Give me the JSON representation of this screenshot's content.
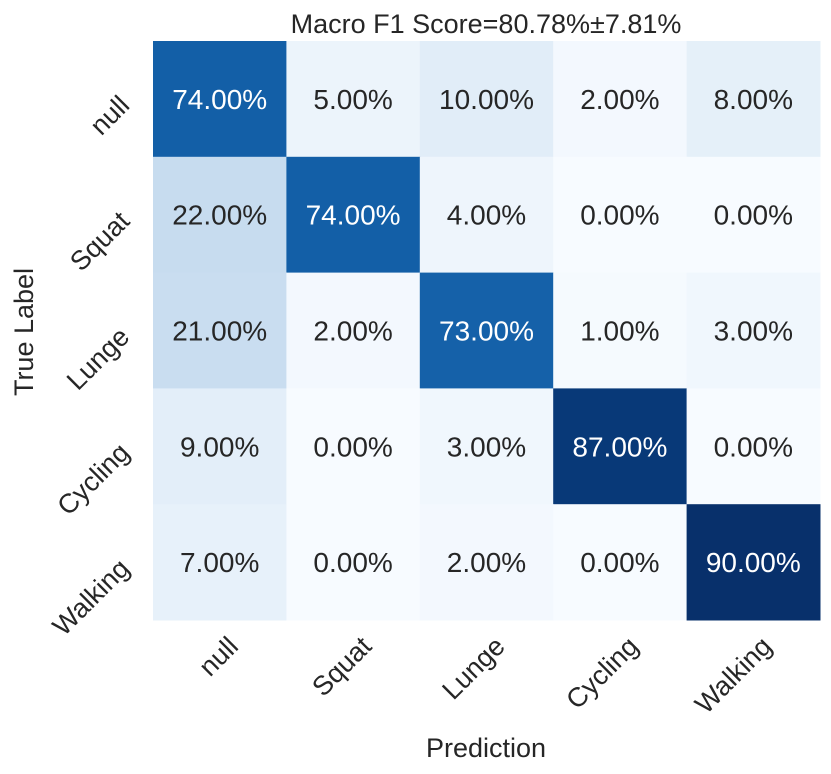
{
  "chart_data": {
    "type": "heatmap",
    "title": "Macro F1 Score=80.78%±7.81%",
    "xlabel": "Prediction",
    "ylabel": "True Label",
    "x_categories": [
      "null",
      "Squat",
      "Lunge",
      "Cycling",
      "Walking"
    ],
    "y_categories": [
      "null",
      "Squat",
      "Lunge",
      "Cycling",
      "Walking"
    ],
    "values": [
      [
        74,
        5,
        10,
        2,
        8
      ],
      [
        22,
        74,
        4,
        0,
        0
      ],
      [
        21,
        2,
        73,
        1,
        3
      ],
      [
        9,
        0,
        3,
        87,
        0
      ],
      [
        7,
        0,
        2,
        0,
        90
      ]
    ],
    "cell_labels": [
      [
        "74.00%",
        "5.00%",
        "10.00%",
        "2.00%",
        "8.00%"
      ],
      [
        "22.00%",
        "74.00%",
        "4.00%",
        "0.00%",
        "0.00%"
      ],
      [
        "21.00%",
        "2.00%",
        "73.00%",
        "1.00%",
        "3.00%"
      ],
      [
        "9.00%",
        "0.00%",
        "3.00%",
        "87.00%",
        "0.00%"
      ],
      [
        "7.00%",
        "0.00%",
        "2.00%",
        "0.00%",
        "90.00%"
      ]
    ],
    "value_range": [
      0,
      90
    ],
    "colormap": "Blues",
    "colorbar": false,
    "grid": false
  }
}
